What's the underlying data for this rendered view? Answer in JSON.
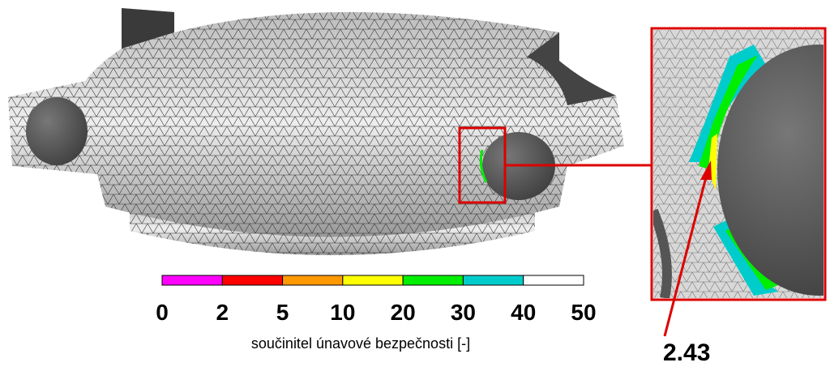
{
  "legend": {
    "colors": [
      "#ff00ff",
      "#ff0000",
      "#ff9900",
      "#ffff00",
      "#00ee00",
      "#00cccc",
      "#ffffff"
    ],
    "ticks": [
      "0",
      "2",
      "5",
      "10",
      "20",
      "30",
      "40",
      "50"
    ],
    "label": "součinitel únavové bezpečnosti [-]"
  },
  "annotation": "2.43"
}
